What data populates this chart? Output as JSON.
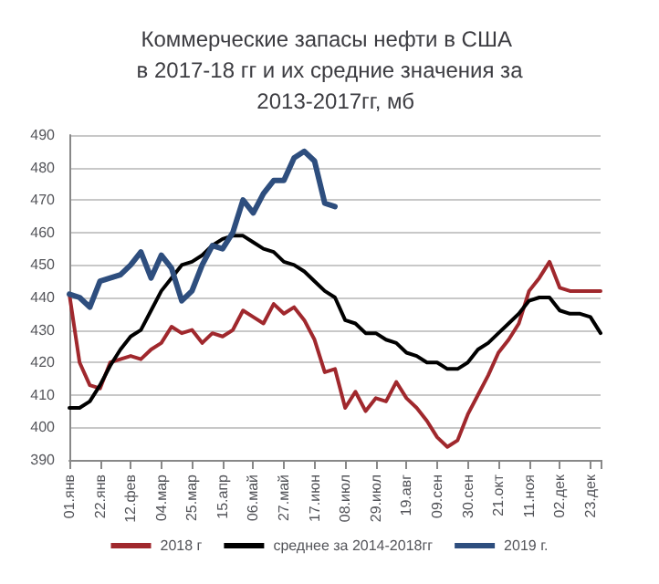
{
  "chart_data": {
    "type": "line",
    "title": "Коммерческие запасы нефти в США в 2017-18 гг и их средние значения за  2013-2017гг, мб",
    "categories": [
      "01.янв",
      null,
      null,
      "22.янв",
      null,
      null,
      "12.фев",
      null,
      null,
      "04.мар",
      null,
      null,
      "25.мар",
      null,
      null,
      "15.апр",
      null,
      null,
      "06.май",
      null,
      null,
      "27.май",
      null,
      null,
      "17.июн",
      null,
      null,
      "08.июл",
      null,
      null,
      "29.июл",
      null,
      null,
      "19.авг",
      null,
      null,
      "09.сен",
      null,
      null,
      "30.сен",
      null,
      null,
      "21.окт",
      null,
      null,
      "11.ноя",
      null,
      null,
      "02.дек",
      null,
      null,
      "23.дек",
      null
    ],
    "series": [
      {
        "name": "2018 г",
        "color": "#a0282d",
        "values": [
          441,
          420,
          413,
          412,
          420,
          421,
          422,
          421,
          424,
          426,
          431,
          429,
          430,
          426,
          429,
          428,
          430,
          436,
          434,
          432,
          438,
          435,
          437,
          433,
          427,
          417,
          418,
          406,
          411,
          405,
          409,
          408,
          414,
          409,
          406,
          402,
          397,
          394,
          396,
          404,
          410,
          416,
          423,
          427,
          432,
          442,
          446,
          451,
          443,
          442,
          442,
          442,
          442
        ]
      },
      {
        "name": "среднее за 2014-2018гг",
        "color": "#000000",
        "values": [
          406,
          406,
          408,
          413,
          419,
          424,
          428,
          430,
          436,
          442,
          446,
          450,
          451,
          453,
          456,
          458,
          459,
          459,
          457,
          455,
          454,
          451,
          450,
          448,
          445,
          442,
          440,
          433,
          432,
          429,
          429,
          427,
          426,
          423,
          422,
          420,
          420,
          418,
          418,
          420,
          424,
          426,
          429,
          432,
          435,
          439,
          440,
          440,
          436,
          435,
          435,
          434,
          429
        ]
      },
      {
        "name": "2019 г.",
        "color": "#2e4e7e",
        "values": [
          441,
          440,
          437,
          445,
          446,
          447,
          450,
          454,
          446,
          453,
          449,
          439,
          442,
          450,
          456,
          455,
          460,
          470,
          466,
          472,
          476,
          476,
          483,
          485,
          482,
          469,
          468,
          null,
          null,
          null,
          null,
          null,
          null,
          null,
          null,
          null,
          null,
          null,
          null,
          null,
          null,
          null,
          null,
          null,
          null,
          null,
          null,
          null,
          null,
          null,
          null,
          null,
          null
        ]
      }
    ],
    "ylim": [
      390,
      490
    ],
    "yticks": [
      390,
      400,
      410,
      420,
      430,
      440,
      450,
      460,
      470,
      480,
      490
    ],
    "grid": "y",
    "legend": "bottom",
    "marker": "none",
    "line_style": "solid"
  }
}
